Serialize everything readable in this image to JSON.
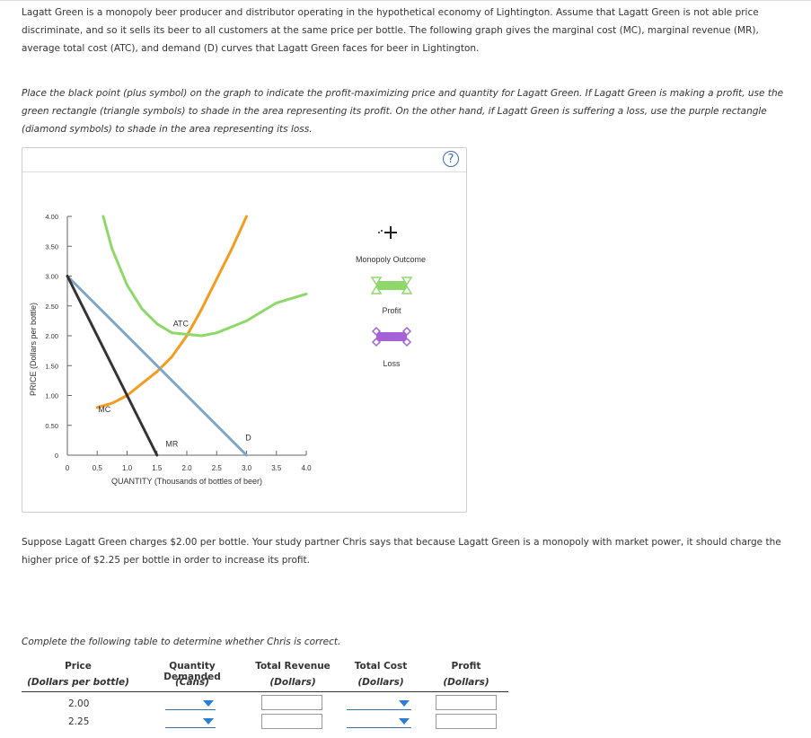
{
  "intro": "Lagatt Green is a monopoly beer producer and distributor operating in the hypothetical economy of Lightington. Assume that Lagatt Green is not able price discriminate, and so it sells its beer to all customers at the same price per bottle. The following graph gives the marginal cost (MC), marginal revenue (MR), average total cost (ATC), and demand (D) curves that Lagatt Green faces for beer in Lightington.",
  "instructions": "Place the black point (plus symbol) on the graph to indicate the profit-maximizing price and quantity for Lagatt Green. If Lagatt Green is making a profit, use the green rectangle (triangle symbols) to shade in the area representing its profit. On the other hand, if Lagatt Green is suffering a loss, use the purple rectangle (diamond symbols) to shade in the area representing its loss.",
  "help_icon": "?",
  "tools": {
    "monopoly": "Monopoly Outcome",
    "profit": "Profit",
    "loss": "Loss",
    "profit_color": "#8ed86a",
    "loss_color": "#a561d6"
  },
  "chart_data": {
    "type": "line",
    "xlabel": "QUANTITY (Thousands of bottles of beer)",
    "ylabel": "PRICE (Dollars per bottle)",
    "xlim": [
      0,
      4.0
    ],
    "ylim": [
      0,
      4.0
    ],
    "xticks": [
      "0",
      "0.5",
      "1.0",
      "1.5",
      "2.0",
      "2.5",
      "3.0",
      "3.5",
      "4.0"
    ],
    "yticks": [
      "0",
      "0.50",
      "1.00",
      "1.50",
      "2.00",
      "2.50",
      "3.00",
      "3.50",
      "4.00"
    ],
    "series": [
      {
        "name": "MC",
        "color": "#f39c1f",
        "points": [
          [
            0.5,
            0.8
          ],
          [
            0.75,
            0.87
          ],
          [
            1.0,
            1.0
          ],
          [
            1.25,
            1.2
          ],
          [
            1.5,
            1.4
          ],
          [
            1.75,
            1.65
          ],
          [
            2.0,
            2.0
          ],
          [
            2.25,
            2.45
          ],
          [
            2.5,
            2.95
          ],
          [
            2.75,
            3.45
          ],
          [
            3.0,
            4.0
          ]
        ]
      },
      {
        "name": "ATC",
        "color": "#8ed86a",
        "points": [
          [
            0.6,
            4.0
          ],
          [
            0.75,
            3.45
          ],
          [
            1.0,
            2.85
          ],
          [
            1.25,
            2.45
          ],
          [
            1.5,
            2.2
          ],
          [
            1.75,
            2.05
          ],
          [
            2.25,
            2.0
          ],
          [
            2.5,
            2.05
          ],
          [
            3.0,
            2.25
          ],
          [
            3.5,
            2.55
          ],
          [
            4.0,
            2.7
          ]
        ]
      },
      {
        "name": "D",
        "color": "#7ea6cb",
        "points": [
          [
            0,
            3.0
          ],
          [
            3.0,
            0
          ]
        ]
      },
      {
        "name": "MR",
        "color": "#333333",
        "points": [
          [
            0,
            3.0
          ],
          [
            1.5,
            0
          ]
        ]
      }
    ]
  },
  "question": "Suppose Lagatt Green charges $2.00 per bottle. Your study partner Chris says that because Lagatt Green is a monopoly with market power, it should charge the higher price of $2.25 per bottle in order to increase its profit.",
  "table_intro": "Complete the following table to determine whether Chris is correct.",
  "table": {
    "headers": [
      {
        "title": "Price",
        "sub": "(Dollars per bottle)"
      },
      {
        "title": "Quantity Demanded",
        "sub": "(Cans)"
      },
      {
        "title": "Total Revenue",
        "sub": "(Dollars)"
      },
      {
        "title": "Total Cost",
        "sub": "(Dollars)"
      },
      {
        "title": "Profit",
        "sub": "(Dollars)"
      }
    ],
    "rows": [
      {
        "price": "2.00"
      },
      {
        "price": "2.25"
      }
    ]
  }
}
